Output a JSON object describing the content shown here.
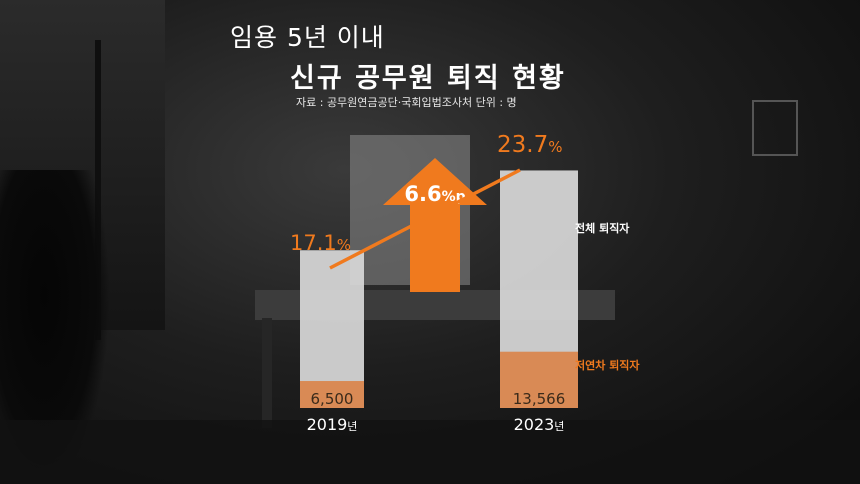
{
  "title_line1": "임용 5년 이내",
  "title_line2": "신규 공무원 퇴직 현황",
  "source": "자료 : 공무원연금공단·국회입법조사처   단위 : 명",
  "colors": {
    "accent": "#f07a1e",
    "total_bar": "#d9d9d9",
    "early_bar": "#d98a55",
    "text": "#ffffff"
  },
  "chart_data": {
    "type": "bar",
    "categories": [
      "2019",
      "2023"
    ],
    "category_suffix": "년",
    "series": [
      {
        "name": "저연차 퇴직자",
        "values": [
          6500,
          13566
        ],
        "labels": [
          "6,500",
          "13,566"
        ]
      },
      {
        "name": "전체 퇴직자",
        "share_percent": [
          17.1,
          23.7
        ],
        "labels": [
          "17.1",
          "23.7"
        ],
        "unit": "%"
      }
    ],
    "annotation": {
      "value": "6.6",
      "unit": "%p"
    },
    "line": {
      "values": [
        17.1,
        23.7
      ]
    }
  }
}
